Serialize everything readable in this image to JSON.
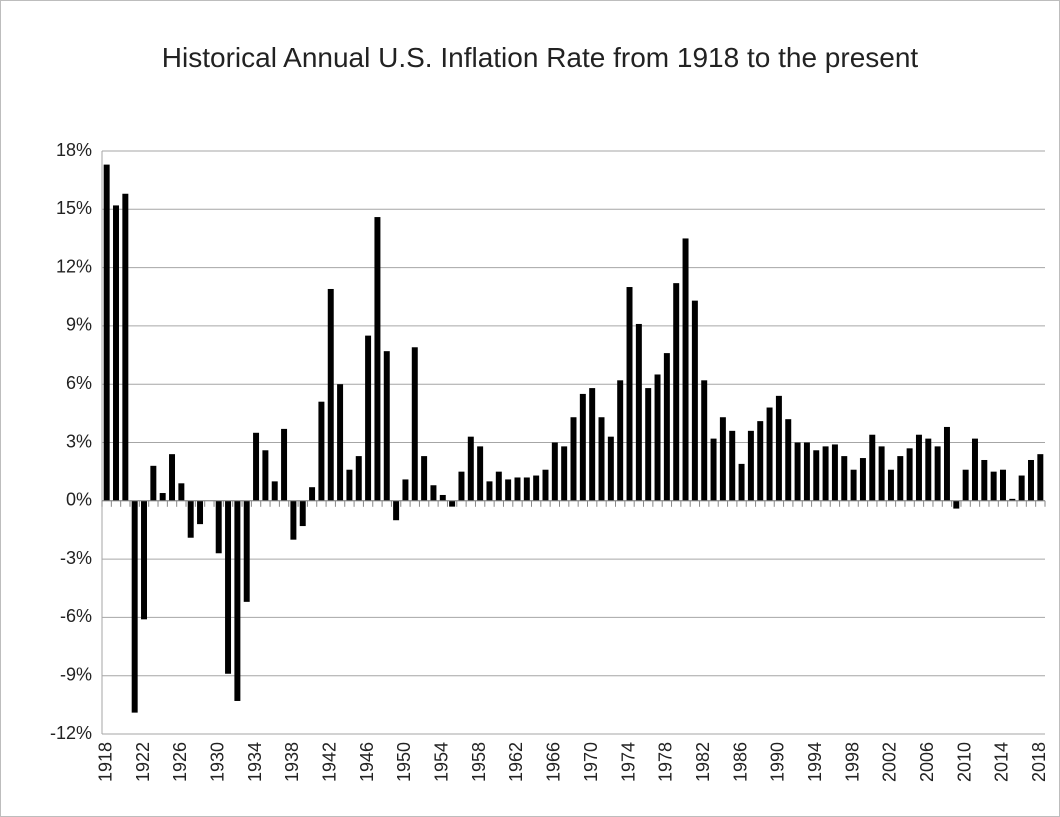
{
  "chart_data": {
    "type": "bar",
    "title": "Historical Annual U.S. Inflation Rate from 1918 to the present",
    "categories": [
      "1918",
      null,
      null,
      null,
      "1922",
      null,
      null,
      null,
      "1926",
      null,
      null,
      null,
      "1930",
      null,
      null,
      null,
      "1934",
      null,
      null,
      null,
      "1938",
      null,
      null,
      null,
      "1942",
      null,
      null,
      null,
      "1946",
      null,
      null,
      null,
      "1950",
      null,
      null,
      null,
      "1954",
      null,
      null,
      null,
      "1958",
      null,
      null,
      null,
      "1962",
      null,
      null,
      null,
      "1966",
      null,
      null,
      null,
      "1970",
      null,
      null,
      null,
      "1974",
      null,
      null,
      null,
      "1978",
      null,
      null,
      null,
      "1982",
      null,
      null,
      null,
      "1986",
      null,
      null,
      null,
      "1990",
      null,
      null,
      null,
      "1994",
      null,
      null,
      null,
      "1998",
      null,
      null,
      null,
      "2002",
      null,
      null,
      null,
      "2006",
      null,
      null,
      null,
      "2010",
      null,
      null,
      null,
      "2014",
      null,
      null,
      null,
      "2018"
    ],
    "values": [
      17.3,
      15.2,
      15.8,
      -10.9,
      -6.1,
      1.8,
      0.4,
      2.4,
      0.9,
      -1.9,
      -1.2,
      0,
      -2.7,
      -8.9,
      -10.3,
      -5.2,
      3.5,
      2.6,
      1.0,
      3.7,
      -2.0,
      -1.3,
      0.7,
      5.1,
      10.9,
      6.0,
      1.6,
      2.3,
      8.5,
      14.6,
      7.7,
      -1.0,
      1.1,
      7.9,
      2.3,
      0.8,
      0.3,
      -0.3,
      1.5,
      3.3,
      2.8,
      1.0,
      1.5,
      1.1,
      1.2,
      1.2,
      1.3,
      1.6,
      3.0,
      2.8,
      4.3,
      5.5,
      5.8,
      4.3,
      3.3,
      6.2,
      11.0,
      9.1,
      5.8,
      6.5,
      7.6,
      11.2,
      13.5,
      10.3,
      6.2,
      3.2,
      4.3,
      3.6,
      1.9,
      3.6,
      4.1,
      4.8,
      5.4,
      4.2,
      3.0,
      3.0,
      2.6,
      2.8,
      2.9,
      2.3,
      1.6,
      2.2,
      3.4,
      2.8,
      1.6,
      2.3,
      2.7,
      3.4,
      3.2,
      2.8,
      3.8,
      -0.4,
      1.6,
      3.2,
      2.1,
      1.5,
      1.6,
      0.1,
      1.3,
      2.1,
      2.4
    ],
    "color": "#000000",
    "ylim": [
      -12,
      18
    ],
    "yticks": [
      {
        "value": -12,
        "label": "-12%"
      },
      {
        "value": -9,
        "label": "-9%"
      },
      {
        "value": -6,
        "label": "-6%"
      },
      {
        "value": -3,
        "label": "-3%"
      },
      {
        "value": 0,
        "label": "0%"
      },
      {
        "value": 3,
        "label": "3%"
      },
      {
        "value": 6,
        "label": "6%"
      },
      {
        "value": 9,
        "label": "9%"
      },
      {
        "value": 12,
        "label": "12%"
      },
      {
        "value": 15,
        "label": "15%"
      },
      {
        "value": 18,
        "label": "18%"
      }
    ],
    "grid": true
  }
}
